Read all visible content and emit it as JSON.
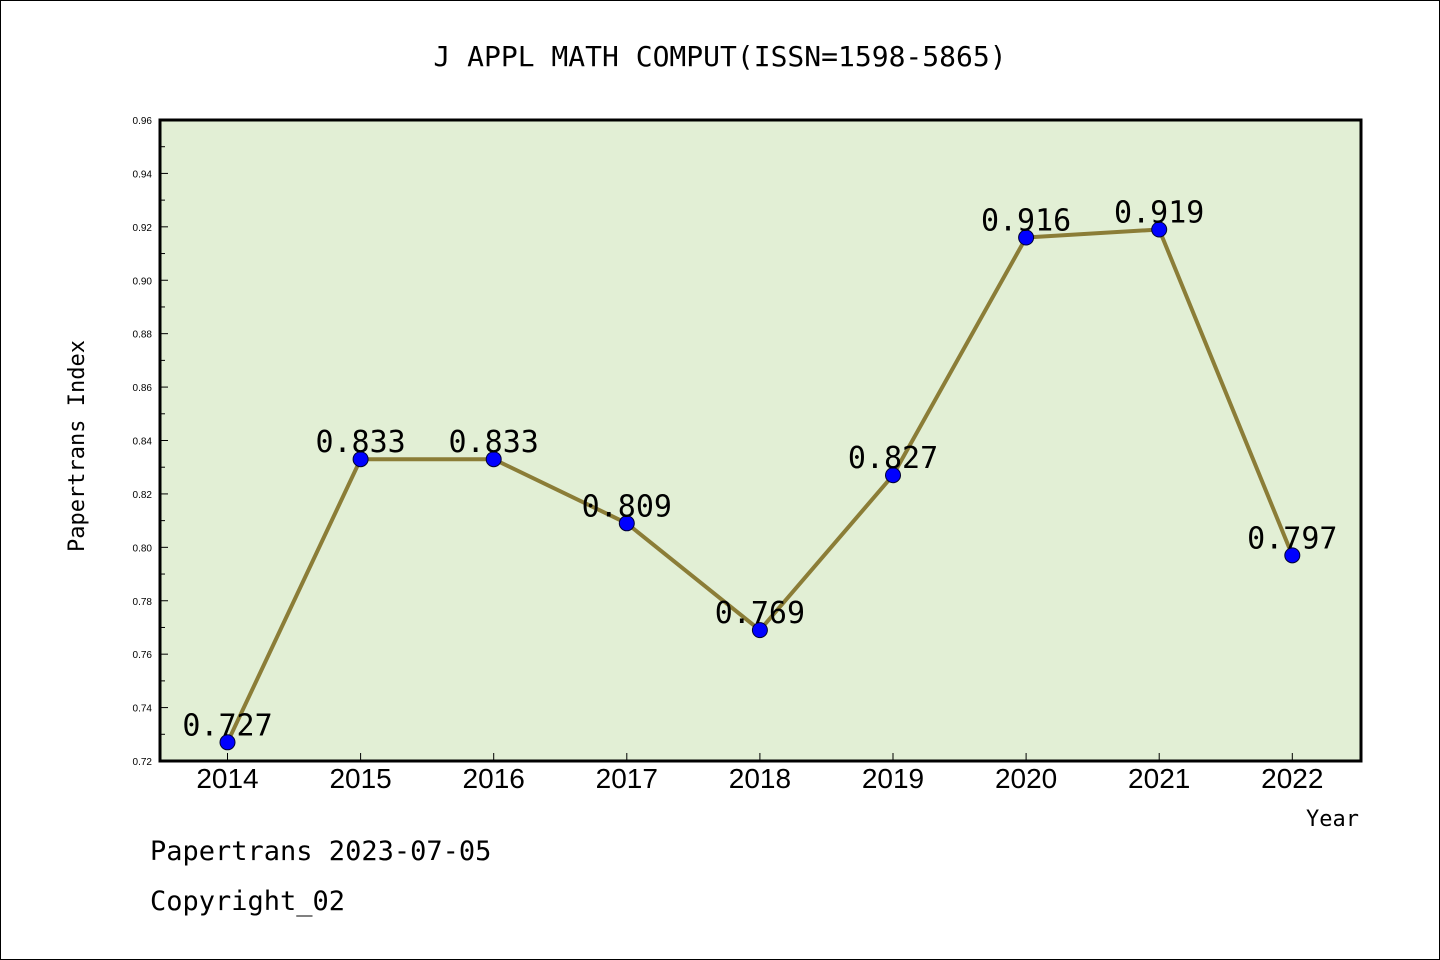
{
  "chart_data": {
    "type": "line",
    "title": "J APPL MATH COMPUT(ISSN=1598-5865)",
    "xlabel": "Year",
    "ylabel": "Papertrans Index",
    "categories": [
      "2014",
      "2015",
      "2016",
      "2017",
      "2018",
      "2019",
      "2020",
      "2021",
      "2022"
    ],
    "series": [
      {
        "values": [
          0.727,
          0.833,
          0.833,
          0.809,
          0.769,
          0.827,
          0.916,
          0.919,
          0.797
        ],
        "labels": [
          "0.727",
          "0.833",
          "0.833",
          "0.809",
          "0.769",
          "0.827",
          "0.916",
          "0.919",
          "0.797"
        ]
      }
    ],
    "ylim": [
      0.72,
      0.96
    ],
    "yticks": [
      "0.72",
      "0.74",
      "0.76",
      "0.78",
      "0.80",
      "0.82",
      "0.84",
      "0.86",
      "0.88",
      "0.90",
      "0.92",
      "0.94",
      "0.96"
    ],
    "grid": false,
    "colors": {
      "plot_background": "#e2efd5",
      "line": "#8b7d37",
      "marker": "#0000ff"
    }
  },
  "footer": {
    "line1": "Papertrans 2023-07-05",
    "line2": "Copyright_02"
  }
}
